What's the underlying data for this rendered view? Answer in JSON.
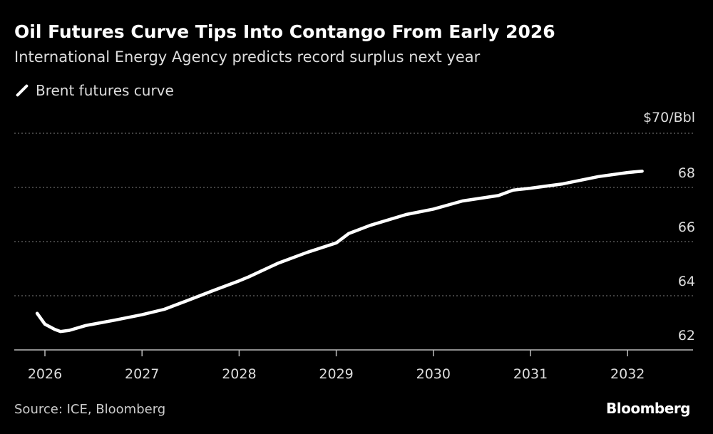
{
  "title": "Oil Futures Curve Tips Into Contango From Early 2026",
  "subtitle": "International Energy Agency predicts record surplus next year",
  "source": "Source: ICE, Bloomberg",
  "logo": "Bloomberg",
  "chart_data": {
    "type": "line",
    "title": "Oil Futures Curve Tips Into Contango From Early 2026",
    "subtitle": "International Energy Agency predicts record surplus next year",
    "legend": {
      "placement": "top-left",
      "entries": [
        "Brent futures curve"
      ]
    },
    "y_unit_label": "$70/Bbl",
    "ylim": [
      62,
      70
    ],
    "y_ticks": [
      {
        "value": 70,
        "label": "$70/Bbl"
      },
      {
        "value": 68,
        "label": "68"
      },
      {
        "value": 66,
        "label": "66"
      },
      {
        "value": 64,
        "label": "64"
      },
      {
        "value": 62,
        "label": "62"
      }
    ],
    "xlim": [
      2025.85,
      2032.7
    ],
    "x_ticks": [
      "2026",
      "2027",
      "2028",
      "2029",
      "2030",
      "2031",
      "2032"
    ],
    "grid": "horizontal dotted",
    "colors": {
      "background": "#000000",
      "line": "#ffffff",
      "grid": "#666666"
    },
    "series": [
      {
        "name": "Brent futures curve",
        "x": [
          2025.92,
          2026.0,
          2026.1,
          2026.16,
          2026.25,
          2026.42,
          2026.72,
          2027.0,
          2027.23,
          2027.45,
          2027.74,
          2028.0,
          2028.1,
          2028.4,
          2028.7,
          2029.0,
          2029.13,
          2029.35,
          2029.72,
          2030.0,
          2030.3,
          2030.67,
          2030.82,
          2031.0,
          2031.33,
          2031.7,
          2032.0,
          2032.15
        ],
        "y": [
          63.35,
          62.95,
          62.76,
          62.68,
          62.72,
          62.9,
          63.1,
          63.3,
          63.5,
          63.8,
          64.2,
          64.55,
          64.7,
          65.2,
          65.6,
          65.95,
          66.3,
          66.6,
          67.0,
          67.2,
          67.5,
          67.7,
          67.9,
          67.97,
          68.13,
          68.4,
          68.55,
          68.6
        ]
      }
    ]
  }
}
